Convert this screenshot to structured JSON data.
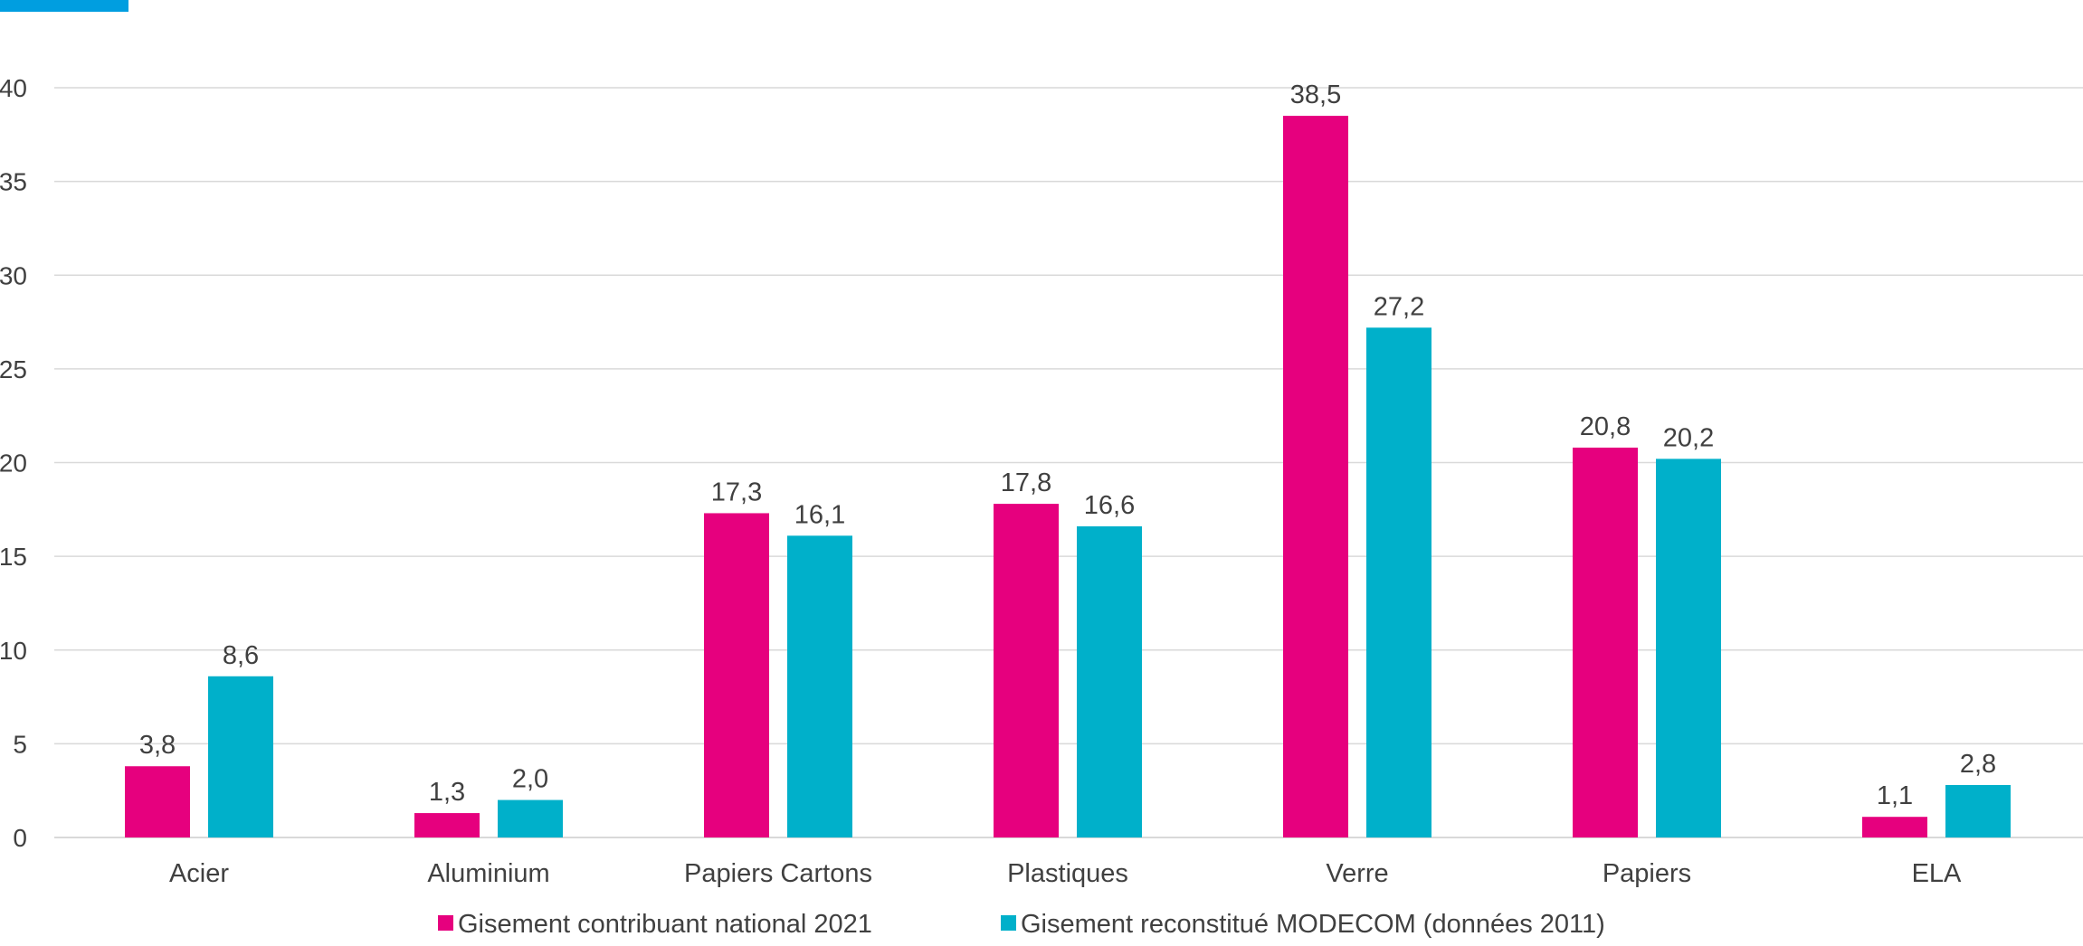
{
  "colors": {
    "accent_bar": "#009ee0",
    "series_1": "#e6007e",
    "series_2": "#00b0ca",
    "grid": "#d9d9d9",
    "text": "#404040"
  },
  "chart_data": {
    "type": "bar",
    "categories": [
      "Acier",
      "Aluminium",
      "Papiers Cartons",
      "Plastiques",
      "Verre",
      "Papiers",
      "ELA"
    ],
    "series": [
      {
        "name": "Gisement contribuant national 2021",
        "values": [
          3.8,
          1.3,
          17.3,
          17.8,
          38.5,
          20.8,
          1.1
        ],
        "labels": [
          "3,8",
          "1,3",
          "17,3",
          "17,8",
          "38,5",
          "20,8",
          "1,1"
        ]
      },
      {
        "name": "Gisement reconstitué MODECOM (données 2011)",
        "values": [
          8.6,
          2.0,
          16.1,
          16.6,
          27.2,
          20.2,
          2.8
        ],
        "labels": [
          "8,6",
          "2,0",
          "16,1",
          "16,6",
          "27,2",
          "20,2",
          "2,8"
        ]
      }
    ],
    "ylim": [
      0,
      40
    ],
    "yticks": [
      "0",
      "5",
      "10",
      "15",
      "20",
      "25",
      "30",
      "35",
      "40"
    ],
    "grid": true,
    "legend_position": "bottom",
    "title": "",
    "xlabel": "",
    "ylabel": ""
  }
}
